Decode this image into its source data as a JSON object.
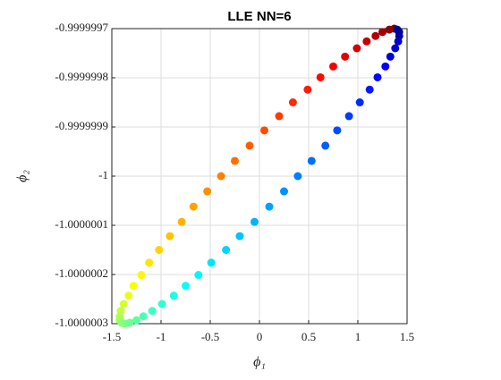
{
  "chart_data": {
    "type": "scatter",
    "title": "LLE NN=6",
    "xlabel": "ϕ₁",
    "ylabel": "ϕ₂",
    "color_map": "jet",
    "x": [
      1.37,
      1.32,
      1.25,
      1.18,
      1.09,
      0.99,
      0.87,
      0.75,
      0.62,
      0.49,
      0.34,
      0.2,
      0.05,
      -0.1,
      -0.25,
      -0.39,
      -0.53,
      -0.67,
      -0.79,
      -0.91,
      -1.02,
      -1.12,
      -1.2,
      -1.28,
      -1.33,
      -1.38,
      -1.41,
      -1.42,
      -1.42,
      -1.4,
      -1.37,
      -1.32,
      -1.25,
      -1.18,
      -1.09,
      -0.99,
      -0.87,
      -0.75,
      -0.62,
      -0.49,
      -0.34,
      -0.2,
      -0.05,
      0.1,
      0.25,
      0.39,
      0.53,
      0.67,
      0.79,
      0.91,
      1.02,
      1.12,
      1.2,
      1.28,
      1.33,
      1.38,
      1.41,
      1.42,
      1.42,
      1.4
    ],
    "y": [
      -0.9999997,
      -0.999999702,
      -0.999999707,
      -0.999999715,
      -0.999999726,
      -0.99999974,
      -0.999999757,
      -0.999999777,
      -0.999999799,
      -0.999999824,
      -0.99999985,
      -0.999999878,
      -0.999999907,
      -0.999999938,
      -0.999999969,
      -1,
      -1.000000031,
      -1.000000062,
      -1.000000093,
      -1.000000122,
      -1.00000015,
      -1.000000176,
      -1.000000201,
      -1.000000223,
      -1.000000243,
      -1.00000026,
      -1.000000274,
      -1.000000285,
      -1.000000293,
      -1.000000298,
      -1.0000003,
      -1.000000298,
      -1.000000293,
      -1.000000285,
      -1.000000274,
      -1.00000026,
      -1.000000243,
      -1.000000223,
      -1.000000201,
      -1.000000176,
      -1.00000015,
      -1.000000122,
      -1.000000093,
      -1.000000062,
      -1.000000031,
      -1,
      -0.999999969,
      -0.999999938,
      -0.999999907,
      -0.999999878,
      -0.99999985,
      -0.999999824,
      -0.999999799,
      -0.999999777,
      -0.999999757,
      -0.99999974,
      -0.999999726,
      -0.999999715,
      -0.999999707,
      -0.999999702
    ],
    "xlim": [
      -1.5,
      1.5
    ],
    "xticks": [
      -1.5,
      -1,
      -0.5,
      0,
      0.5,
      1,
      1.5
    ],
    "ylim": [
      -1.0000003,
      -0.9999997
    ],
    "yticks": [
      -1.0000003,
      -1.0000002,
      -1.0000001,
      -1,
      -0.9999999,
      -0.9999998,
      -0.9999997
    ],
    "grid": true
  }
}
